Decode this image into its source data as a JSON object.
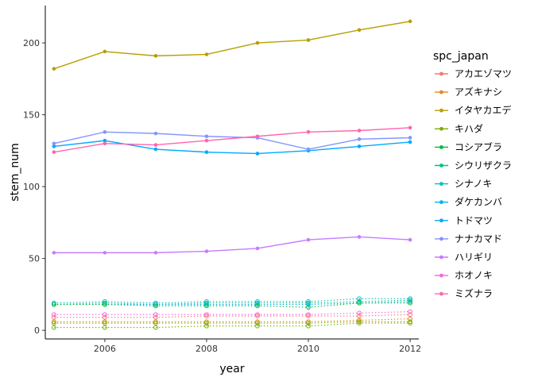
{
  "chart_data": {
    "type": "line",
    "xlabel": "year",
    "ylabel": "stem_num",
    "xlim": [
      2004.83,
      2012.17
    ],
    "ylim": [
      -6,
      226
    ],
    "x_ticks": [
      2006,
      2008,
      2010,
      2012
    ],
    "y_ticks": [
      0,
      50,
      100,
      150,
      200
    ],
    "legend_title": "spc_japan",
    "legend_position": "right",
    "x": [
      2005,
      2006,
      2007,
      2008,
      2009,
      2010,
      2011,
      2012
    ],
    "series": [
      {
        "name": "アカエゾマツ",
        "color": "#F8766D",
        "values": [
          null,
          null,
          null,
          null,
          null,
          null,
          null,
          null
        ]
      },
      {
        "name": "アズキナシ",
        "color": "#E7851E",
        "values": [
          null,
          null,
          null,
          null,
          null,
          null,
          null,
          null
        ]
      },
      {
        "name": "イタヤカエデ",
        "color": "#B79F00",
        "values": [
          182,
          194,
          191,
          192,
          200,
          202,
          209,
          215
        ]
      },
      {
        "name": "キハダ",
        "color": "#7CAE00",
        "values": [
          null,
          null,
          null,
          null,
          null,
          null,
          null,
          null
        ]
      },
      {
        "name": "コシアブラ",
        "color": "#00BA38",
        "values": [
          null,
          null,
          null,
          null,
          null,
          null,
          null,
          null
        ]
      },
      {
        "name": "シウリザクラ",
        "color": "#00C08B",
        "values": [
          null,
          null,
          null,
          null,
          null,
          null,
          null,
          null
        ]
      },
      {
        "name": "シナノキ",
        "color": "#00BFC4",
        "values": [
          null,
          null,
          null,
          null,
          null,
          null,
          null,
          null
        ]
      },
      {
        "name": "ダケカンバ",
        "color": "#00B4F0",
        "values": [
          null,
          null,
          null,
          null,
          null,
          null,
          null,
          null
        ]
      },
      {
        "name": "トドマツ",
        "color": "#00A9FF",
        "values": [
          128,
          132,
          126,
          124,
          123,
          125,
          128,
          131
        ]
      },
      {
        "name": "ナナカマド",
        "color": "#8494FF",
        "values": [
          130,
          138,
          137,
          135,
          134,
          126,
          133,
          134
        ]
      },
      {
        "name": "ハリギリ",
        "color": "#C77CFF",
        "values": [
          54,
          54,
          54,
          55,
          57,
          63,
          65,
          63
        ]
      },
      {
        "name": "ホオノキ",
        "color": "#F564E3",
        "values": [
          null,
          null,
          null,
          null,
          null,
          null,
          null,
          null
        ]
      },
      {
        "name": "ミズナラ",
        "color": "#FF64B0",
        "values": [
          124,
          130,
          129,
          132,
          135,
          138,
          139,
          141
        ]
      }
    ],
    "dotted_series": [
      {
        "name": "シナノキ",
        "color": "#00BFC4",
        "values": [
          19,
          20,
          19,
          20,
          20,
          20,
          22,
          22
        ]
      },
      {
        "name": "シウリザクラ",
        "color": "#00C08B",
        "values": [
          18,
          19,
          18,
          19,
          19,
          19,
          20,
          21
        ]
      },
      {
        "name": "ダケカンバ",
        "color": "#00B4F0",
        "values": [
          18,
          18,
          18,
          18,
          18,
          18,
          19,
          20
        ]
      },
      {
        "name": "コシアブラ",
        "color": "#00BA38",
        "values": [
          18,
          18,
          17,
          17,
          17,
          16,
          19,
          19
        ]
      },
      {
        "name": "ホオノキ",
        "color": "#F564E3",
        "values": [
          11,
          11,
          11,
          11,
          11,
          11,
          12,
          13
        ]
      },
      {
        "name": "アカエゾマツ",
        "color": "#F8766D",
        "values": [
          9,
          9,
          9,
          10,
          10,
          10,
          10,
          11
        ]
      },
      {
        "name": "アズキナシ",
        "color": "#E7851E",
        "values": [
          6,
          6,
          6,
          6,
          6,
          6,
          7,
          8
        ]
      },
      {
        "name": "キハダ",
        "color": "#7CAE00",
        "values": [
          5,
          5,
          5,
          5,
          5,
          5,
          6,
          6
        ]
      },
      {
        "name": "キハダ",
        "color": "#7CAE00",
        "values": [
          2,
          2,
          2,
          3,
          3,
          3,
          5,
          5
        ]
      }
    ]
  }
}
